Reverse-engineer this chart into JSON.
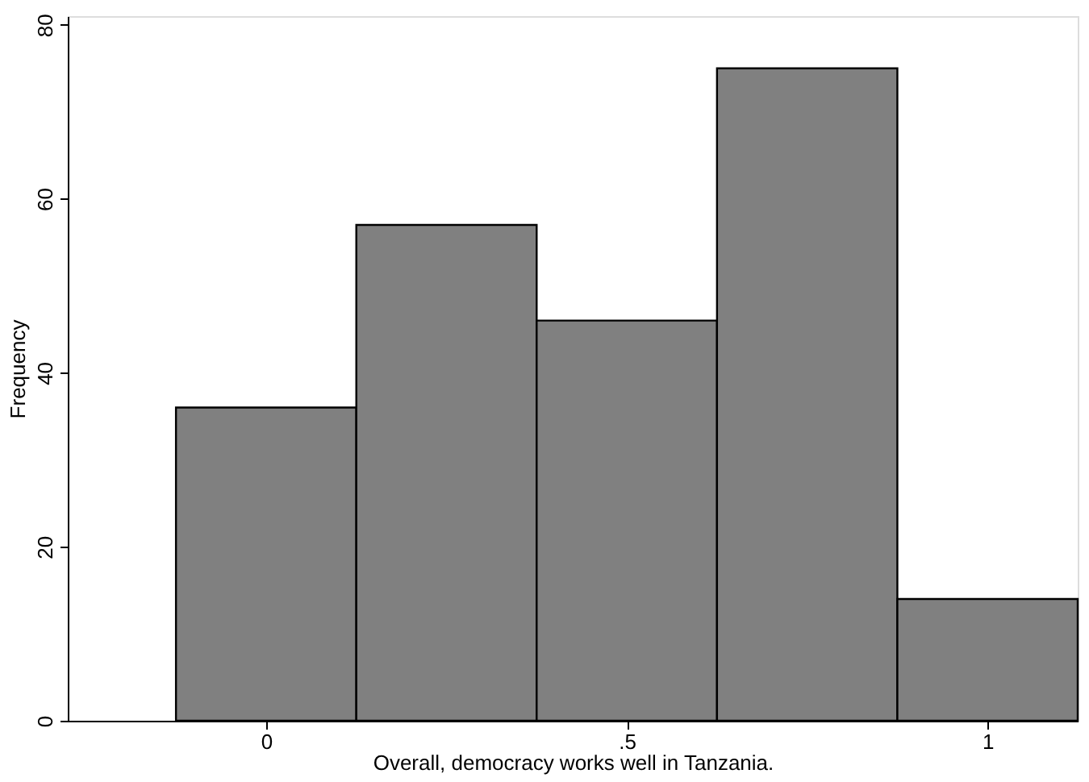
{
  "chart_data": {
    "type": "histogram",
    "xlabel": "Overall, democracy works well in Tanzania.",
    "ylabel": "Frequency",
    "bins": [
      -0.125,
      0.125,
      0.375,
      0.625,
      0.875,
      1.125
    ],
    "values": [
      36,
      57,
      46,
      75,
      14
    ],
    "color": "#808080",
    "xlim": [
      -0.275,
      1.125
    ],
    "xticks": [
      0,
      {
        "value": 0.5,
        "label": ".5"
      },
      1
    ],
    "ylim": [
      0,
      81
    ],
    "yticks": [
      0,
      20,
      40,
      60,
      80
    ],
    "grid": false
  }
}
